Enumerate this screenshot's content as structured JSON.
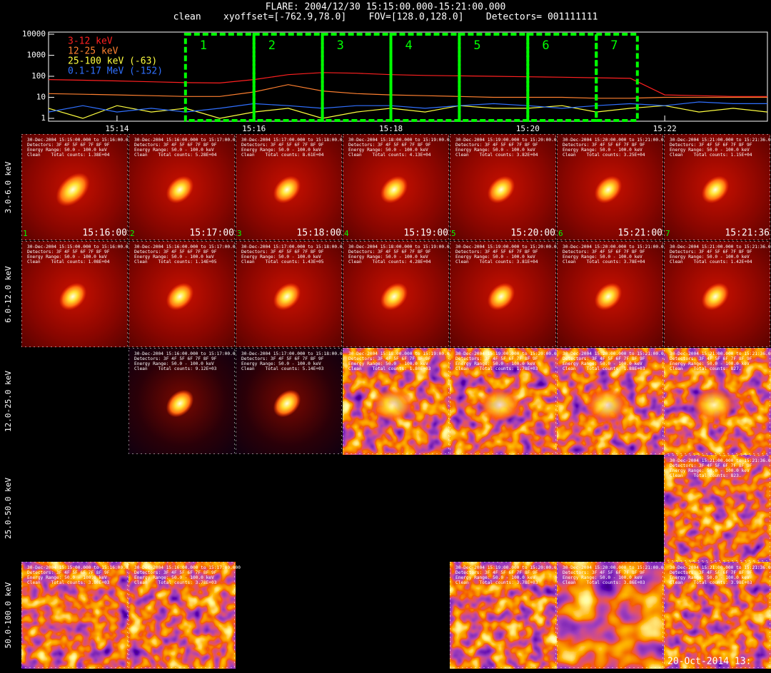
{
  "chart_data": {
    "type": "line",
    "title": "FLARE: 2004/12/30 15:15:00.000-15:21:00.000",
    "subtitle": "clean    xyoffset=[-762.9,78.0]    FOV=[128.0,128.0]    Detectors= 001111111",
    "log_y": true,
    "x": [
      "15:13:00",
      "15:13:30",
      "15:14:00",
      "15:14:30",
      "15:15:00",
      "15:15:30",
      "15:16:00",
      "15:16:30",
      "15:17:00",
      "15:17:30",
      "15:18:00",
      "15:18:30",
      "15:19:00",
      "15:19:30",
      "15:20:00",
      "15:20:30",
      "15:21:00",
      "15:21:30",
      "15:22:00",
      "15:22:30",
      "15:23:00",
      "15:23:30"
    ],
    "xlim": [
      "15:13:00",
      "15:23:30"
    ],
    "xticks": [
      {
        "value": "15:14:00",
        "label": "15:14"
      },
      {
        "value": "15:16:00",
        "label": "15:16"
      },
      {
        "value": "15:18:00",
        "label": "15:18"
      },
      {
        "value": "15:20:00",
        "label": "15:20"
      },
      {
        "value": "15:22:00",
        "label": "15:22"
      }
    ],
    "ylim": [
      1,
      10000
    ],
    "yticks": [
      1,
      10,
      100,
      1000,
      10000
    ],
    "series": [
      {
        "name": "3-12 keV",
        "color": "#ff2020",
        "values": [
          70,
          65,
          60,
          55,
          50,
          48,
          70,
          120,
          150,
          140,
          120,
          110,
          105,
          100,
          95,
          90,
          85,
          80,
          13,
          12,
          11,
          11
        ]
      },
      {
        "name": "12-25 keV",
        "color": "#ff8030",
        "values": [
          15,
          14,
          13,
          12,
          11,
          11,
          18,
          40,
          20,
          15,
          13,
          12,
          11,
          10,
          10,
          10,
          9,
          9,
          10,
          10,
          10,
          10
        ]
      },
      {
        "name": "25-100 keV (-63)",
        "color": "#ffff40",
        "values": [
          3,
          1,
          4,
          2,
          3,
          1,
          2,
          3,
          1,
          2,
          3,
          2,
          4,
          3,
          3,
          4,
          2,
          3,
          4,
          2,
          3,
          2
        ]
      },
      {
        "name": "0.1-17 MeV (-152)",
        "color": "#3070ff",
        "values": [
          2,
          4,
          2,
          3,
          2,
          3,
          5,
          4,
          3,
          4,
          4,
          3,
          4,
          5,
          4,
          3,
          4,
          5,
          4,
          6,
          5,
          5
        ]
      }
    ],
    "intervals": [
      {
        "label": "1",
        "start": "15:15:00",
        "end": "15:16:00"
      },
      {
        "label": "2",
        "start": "15:16:00",
        "end": "15:17:00"
      },
      {
        "label": "3",
        "start": "15:17:00",
        "end": "15:18:00"
      },
      {
        "label": "4",
        "start": "15:18:00",
        "end": "15:19:00"
      },
      {
        "label": "5",
        "start": "15:19:00",
        "end": "15:20:00"
      },
      {
        "label": "6",
        "start": "15:20:00",
        "end": "15:21:00"
      },
      {
        "label": "7",
        "start": "15:21:00",
        "end": "15:21:36"
      }
    ],
    "interval_color": "#00ff00"
  },
  "images": {
    "detectors": "Detectors: 3F 4F 5F 6F 7F 8F 9F",
    "energy": "Energy Range: 50.0 - 100.0 keV",
    "footer": "20-Oct-2014 13:",
    "rows": [
      {
        "label": "3.0-6.0 keV",
        "panels": [
          {
            "range": "30-Dec-2004 15:15:00.000 to 15:16:00.000",
            "counts": "Clean    Total counts: 1.38E+04",
            "index": "1",
            "time": "15:16:00"
          },
          {
            "range": "30-Dec-2004 15:16:00.000 to 15:17:00.000",
            "counts": "Clean    Total counts: 5.28E+04",
            "index": "2",
            "time": "15:17:00"
          },
          {
            "range": "30-Dec-2004 15:17:00.000 to 15:18:00.000",
            "counts": "Clean    Total counts: 8.61E+04",
            "index": "3",
            "time": "15:18:00"
          },
          {
            "range": "30-Dec-2004 15:18:00.000 to 15:19:00.000",
            "counts": "Clean    Total counts: 4.13E+04",
            "index": "4",
            "time": "15:19:00"
          },
          {
            "range": "30-Dec-2004 15:19:00.000 to 15:20:00.000",
            "counts": "Clean    Total counts: 3.82E+04",
            "index": "5",
            "time": "15:20:00"
          },
          {
            "range": "30-Dec-2004 15:20:00.000 to 15:21:00.000",
            "counts": "Clean    Total counts: 3.25E+04",
            "index": "6",
            "time": "15:21:00"
          },
          {
            "range": "30-Dec-2004 15:21:00.000 to 15:21:36.000",
            "counts": "Clean    Total counts: 1.15E+04",
            "index": "7",
            "time": "15:21:36"
          }
        ]
      },
      {
        "label": "6.0-12.0 keV",
        "panels": [
          {
            "range": "30-Dec-2004 15:15:00.000 to 15:16:00.000",
            "counts": "Clean    Total counts: 1.08E+04"
          },
          {
            "range": "30-Dec-2004 15:16:00.000 to 15:17:00.000",
            "counts": "Clean    Total counts: 1.14E+05"
          },
          {
            "range": "30-Dec-2004 15:17:00.000 to 15:18:00.000",
            "counts": "Clean    Total counts: 1.43E+05"
          },
          {
            "range": "30-Dec-2004 15:18:00.000 to 15:19:00.000",
            "counts": "Clean    Total counts: 4.28E+04"
          },
          {
            "range": "30-Dec-2004 15:19:00.000 to 15:20:00.000",
            "counts": "Clean    Total counts: 3.81E+04"
          },
          {
            "range": "30-Dec-2004 15:20:00.000 to 15:21:00.000",
            "counts": "Clean    Total counts: 3.78E+04"
          },
          {
            "range": "30-Dec-2004 15:21:00.000 to 15:21:36.000",
            "counts": "Clean    Total counts: 1.42E+04"
          }
        ]
      },
      {
        "label": "12.0-25.0 keV",
        "panels": [
          null,
          {
            "range": "30-Dec-2004 15:16:00.000 to 15:17:00.000",
            "counts": "Clean    Total counts: 9.12E+03"
          },
          {
            "range": "30-Dec-2004 15:17:00.000 to 15:18:00.000",
            "counts": "Clean    Total counts: 5.14E+03"
          },
          {
            "range": "30-Dec-2004 15:18:00.000 to 15:19:00.000",
            "counts": "Clean    Total counts: 1.80E+03"
          },
          {
            "range": "30-Dec-2004 15:19:00.000 to 15:20:00.000",
            "counts": "Clean    Total counts: 1.78E+03"
          },
          {
            "range": "30-Dec-2004 15:20:00.000 to 15:21:00.000",
            "counts": "Clean    Total counts: 1.88E+03"
          },
          {
            "range": "30-Dec-2004 15:21:00.000 to 15:21:36.000",
            "counts": "Clean    Total counts: 827."
          }
        ]
      },
      {
        "label": "25.0-50.0 keV",
        "panels": [
          null,
          null,
          null,
          null,
          null,
          null,
          {
            "range": "30-Dec-2004 15:21:00.000 to 15:21:36.000",
            "counts": "Clean    Total counts: 823."
          }
        ]
      },
      {
        "label": "50.0-100.0 keV",
        "panels": [
          {
            "range": "30-Dec-2004 15:15:00.000 to 15:16:00.000",
            "counts": "Clean    Total counts: 3.80E+03"
          },
          {
            "range": "30-Dec-2004 15:16:00.000 to 15:17:00.000",
            "counts": "Clean    Total counts: 3.78E+03"
          },
          null,
          null,
          {
            "range": "30-Dec-2004 15:19:00.000 to 15:20:00.000",
            "counts": "Clean    Total counts: 3.78E+03"
          },
          {
            "range": "30-Dec-2004 15:20:00.000 to 15:21:00.000",
            "counts": "Clean    Total counts: 3.86E+03"
          },
          {
            "range": "30-Dec-2004 15:21:00.000 to 15:21:36.000",
            "counts": "Clean    Total counts: 3.98E+03"
          }
        ]
      }
    ]
  }
}
